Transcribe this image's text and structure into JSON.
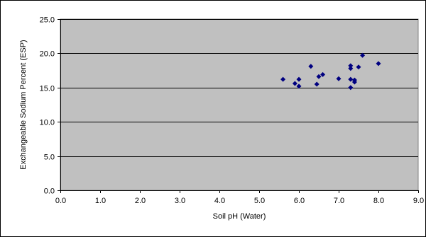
{
  "chart_data": {
    "type": "scatter",
    "title": "",
    "xlabel": "Soil pH (Water)",
    "ylabel": "Exchangeable Sodium Percent (ESP)",
    "xlim": [
      0,
      9
    ],
    "ylim": [
      0,
      25
    ],
    "x_ticks": [
      "0.0",
      "1.0",
      "2.0",
      "3.0",
      "4.0",
      "5.0",
      "6.0",
      "7.0",
      "8.0",
      "9.0"
    ],
    "y_ticks": [
      "0.0",
      "5.0",
      "10.0",
      "15.0",
      "20.0",
      "25.0"
    ],
    "grid": "horizontal",
    "legend": "none",
    "colors": {
      "plot_background": "#c0c0c0",
      "marker": "#000080",
      "gridline": "#000000"
    },
    "points": [
      {
        "x": 5.6,
        "y": 16.2
      },
      {
        "x": 5.9,
        "y": 15.6
      },
      {
        "x": 6.0,
        "y": 16.2
      },
      {
        "x": 6.0,
        "y": 15.2
      },
      {
        "x": 6.3,
        "y": 18.1
      },
      {
        "x": 6.45,
        "y": 15.5
      },
      {
        "x": 6.5,
        "y": 16.6
      },
      {
        "x": 6.6,
        "y": 16.9
      },
      {
        "x": 7.0,
        "y": 16.3
      },
      {
        "x": 7.3,
        "y": 18.2
      },
      {
        "x": 7.3,
        "y": 17.8
      },
      {
        "x": 7.3,
        "y": 16.2
      },
      {
        "x": 7.3,
        "y": 15.0
      },
      {
        "x": 7.4,
        "y": 16.1
      },
      {
        "x": 7.4,
        "y": 15.8
      },
      {
        "x": 7.5,
        "y": 18.0
      },
      {
        "x": 7.6,
        "y": 19.7
      },
      {
        "x": 8.0,
        "y": 18.5
      }
    ]
  }
}
